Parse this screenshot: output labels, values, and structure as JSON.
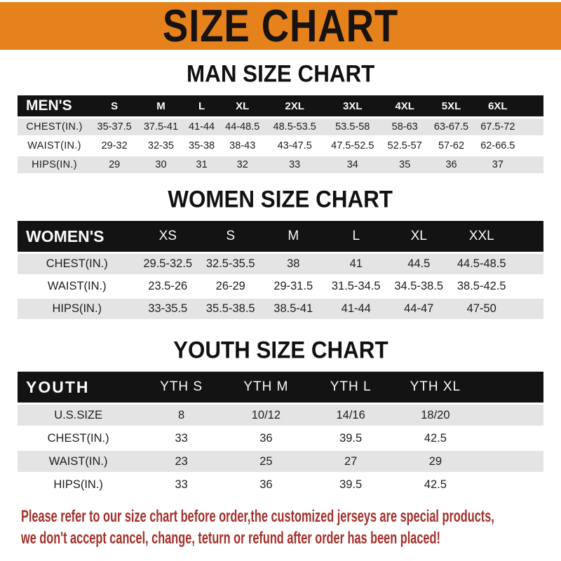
{
  "banner": {
    "title": "SIZE CHART",
    "bg_color": "#e5821c"
  },
  "colors": {
    "banner_orange": "#e5821c",
    "header_bar_black": "#131313",
    "row_stripe_gray": "#e4e4e4",
    "footer_red": "#a4302b"
  },
  "sections": [
    {
      "heading": "MAN SIZE CHART",
      "table": {
        "header_label": "MEN'S",
        "columns": [
          "S",
          "M",
          "L",
          "XL",
          "2XL",
          "3XL",
          "4XL",
          "5XL",
          "6XL"
        ],
        "rows": [
          {
            "label": "CHEST(IN.)",
            "values": [
              "35-37.5",
              "37.5-41",
              "41-44",
              "44-48.5",
              "48.5-53.5",
              "53.5-58",
              "58-63",
              "63-67.5",
              "67.5-72"
            ]
          },
          {
            "label": "WAIST(IN.)",
            "values": [
              "29-32",
              "32-35",
              "35-38",
              "38-43",
              "43-47.5",
              "47.5-52.5",
              "52.5-57",
              "57-62",
              "62-66.5"
            ]
          },
          {
            "label": "HIPS(IN.)",
            "values": [
              "29",
              "30",
              "31",
              "32",
              "33",
              "34",
              "35",
              "36",
              "37"
            ]
          }
        ]
      }
    },
    {
      "heading": "WOMEN SIZE CHART",
      "table": {
        "header_label": "WOMEN'S",
        "columns": [
          "XS",
          "S",
          "M",
          "L",
          "XL",
          "XXL"
        ],
        "rows": [
          {
            "label": "CHEST(IN.)",
            "values": [
              "29.5-32.5",
              "32.5-35.5",
              "38",
              "41",
              "44.5",
              "44.5-48.5"
            ]
          },
          {
            "label": "WAIST(IN.)",
            "values": [
              "23.5-26",
              "26-29",
              "29-31.5",
              "31.5-34.5",
              "34.5-38.5",
              "38.5-42.5"
            ]
          },
          {
            "label": "HIPS(IN.)",
            "values": [
              "33-35.5",
              "35.5-38.5",
              "38.5-41",
              "41-44",
              "44-47",
              "47-50"
            ]
          }
        ]
      }
    },
    {
      "heading": "YOUTH SIZE CHART",
      "table": {
        "header_label": "YOUTH",
        "columns": [
          "YTH S",
          "YTH M",
          "YTH L",
          "YTH XL"
        ],
        "rows": [
          {
            "label": "U.S.SIZE",
            "values": [
              "8",
              "10/12",
              "14/16",
              "18/20"
            ]
          },
          {
            "label": "CHEST(IN.)",
            "values": [
              "33",
              "36",
              "39.5",
              "42.5"
            ]
          },
          {
            "label": "WAIST(IN.)",
            "values": [
              "23",
              "25",
              "27",
              "29"
            ]
          },
          {
            "label": "HIPS(IN.)",
            "values": [
              "33",
              "36",
              "39.5",
              "42.5"
            ]
          }
        ]
      }
    }
  ],
  "footer": {
    "line1": "Please refer to our size chart before order,the customized jerseys are special products,",
    "line2": "we don't accept cancel, change, teturn or refund after order has been placed!"
  }
}
